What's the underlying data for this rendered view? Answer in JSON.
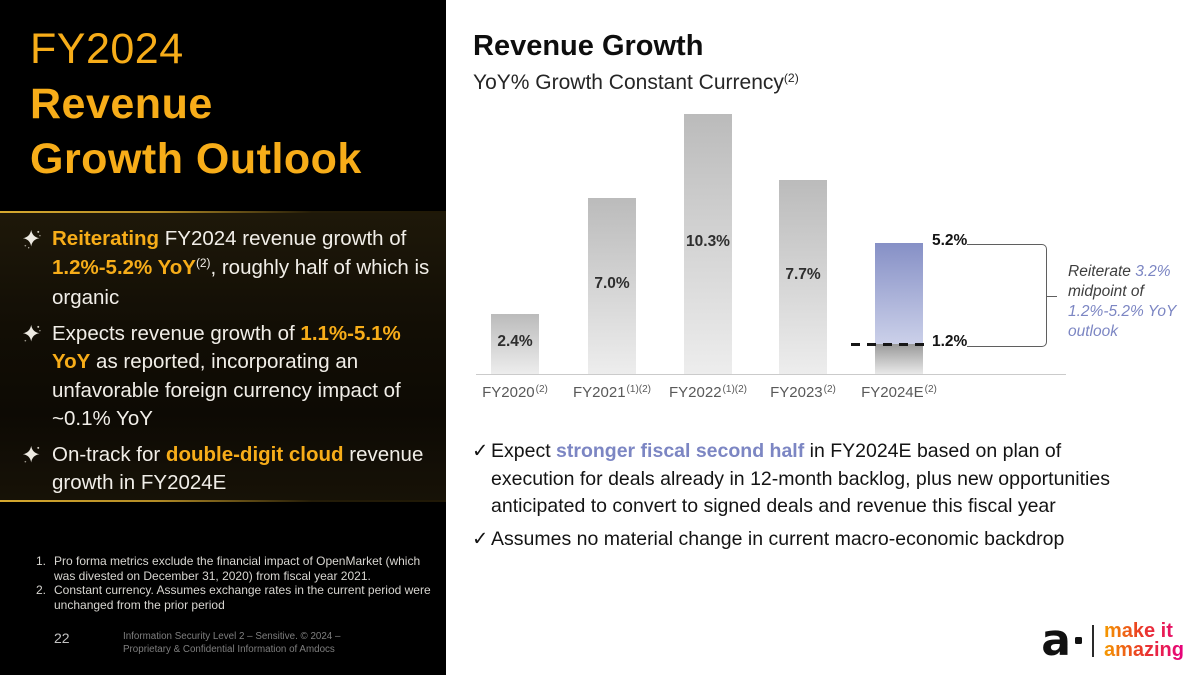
{
  "colors": {
    "accent_gold": "#F7AD19",
    "purple": "#7C86C3",
    "tagline_gradient_start": "#F59B00",
    "tagline_gradient_end": "#E6007E",
    "historical_bar_top": "#BBBBBB",
    "historical_bar_bottom": "#EDEDED",
    "outlook_bar_top": "#8690C6",
    "outlook_bar_bottom": "#CBD0E9"
  },
  "sidebar": {
    "title": {
      "line1": "FY2024",
      "line2": "Revenue",
      "line3": "Growth Outlook"
    },
    "bullet_icon": "sparkle",
    "bullets": [
      {
        "segments": [
          {
            "t": "Reiterating",
            "c": "accent"
          },
          {
            "t": " FY2024 revenue growth of ",
            "c": ""
          },
          {
            "t": "1.2%-5.2% YoY",
            "c": "accent"
          },
          {
            "t": "(2)",
            "c": "sup"
          },
          {
            "t": ", roughly half of which is organic",
            "c": ""
          }
        ]
      },
      {
        "segments": [
          {
            "t": "Expects revenue growth of ",
            "c": ""
          },
          {
            "t": "1.1%-5.1% YoY",
            "c": "accent"
          },
          {
            "t": " as reported, incorporating an unfavorable foreign currency impact of ~0.1% YoY",
            "c": ""
          }
        ]
      },
      {
        "segments": [
          {
            "t": "On-track for ",
            "c": ""
          },
          {
            "t": "double-digit cloud",
            "c": "accent"
          },
          {
            "t": " revenue growth in FY2024E",
            "c": ""
          }
        ]
      }
    ],
    "footnotes": [
      {
        "num": "1.",
        "text": "Pro forma metrics exclude the financial impact of OpenMarket (which was divested on December 31, 2020) from fiscal year 2021."
      },
      {
        "num": "2.",
        "text": "Constant currency. Assumes exchange rates in the current period were unchanged from the prior period"
      }
    ],
    "page_number": "22",
    "footer_note": "Information Security Level 2 – Sensitive. © 2024 – Proprietary & Confidential Information of Amdocs"
  },
  "chart_data": {
    "type": "bar",
    "title": "Revenue Growth",
    "subtitle_segments": [
      {
        "t": "YoY% Growth Constant Currency",
        "c": ""
      },
      {
        "t": "(2)",
        "c": "sup"
      }
    ],
    "categories": [
      {
        "label": "FY2020",
        "sup": "(2)"
      },
      {
        "label": "FY2021",
        "sup": "(1)(2)"
      },
      {
        "label": "FY2022",
        "sup": "(1)(2)"
      },
      {
        "label": "FY2023",
        "sup": "(2)"
      },
      {
        "label": "FY2024E",
        "sup": "(2)"
      }
    ],
    "values": [
      2.4,
      7.0,
      10.3,
      7.7,
      null
    ],
    "value_labels": [
      "2.4%",
      "7.0%",
      "10.3%",
      "7.7%",
      ""
    ],
    "fy2024e_range": {
      "low": 1.2,
      "high": 5.2,
      "low_label": "1.2%",
      "high_label": "5.2%"
    },
    "unit": "%",
    "ylim": [
      0,
      10.5
    ],
    "grid": false,
    "legend": false,
    "xlabel": "",
    "ylabel": "",
    "annotation_segments": [
      {
        "t": "Reiterate ",
        "c": ""
      },
      {
        "t": "3.2%",
        "c": "purple"
      },
      {
        "t": " midpoint of ",
        "c": ""
      },
      {
        "t": "1.2%-5.2% YoY outlook",
        "c": "purple"
      }
    ]
  },
  "main": {
    "check_icon": "✓",
    "bullets": [
      {
        "segments": [
          {
            "t": "Expect ",
            "c": ""
          },
          {
            "t": "stronger fiscal second half",
            "c": "purple-bold"
          },
          {
            "t": " in FY2024E based on plan of execution for deals already in 12-month backlog, plus new opportunities anticipated to convert to signed deals and revenue this fiscal year",
            "c": ""
          }
        ]
      },
      {
        "segments": [
          {
            "t": "Assumes no material change in current macro-economic backdrop",
            "c": ""
          }
        ]
      }
    ],
    "logo": {
      "mark": "a",
      "tagline_line1": "make it",
      "tagline_line2": "amazing"
    }
  }
}
